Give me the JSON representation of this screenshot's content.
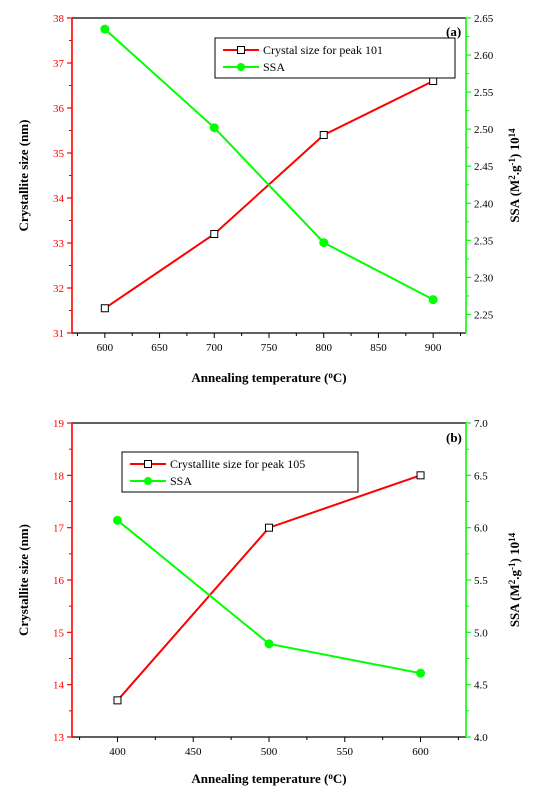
{
  "colors": {
    "left_axis": "#ff0000",
    "right_axis": "#00ff00",
    "series_crystal": "#ff0000",
    "series_ssa": "#00ff00",
    "frame": "#000000"
  },
  "chart_data": [
    {
      "type": "line",
      "panel_label": "(a)",
      "xlabel_main": "Annealing temperature (",
      "xlabel_sup": "o",
      "xlabel_end": "C)",
      "ylabel_left": "Crystallite size (nm)",
      "ylabel_right_main": "SSA (M",
      "ylabel_right_sup1": "2",
      "ylabel_right_mid": ".g",
      "ylabel_right_sup2": "-1",
      "ylabel_right_end": ") 10",
      "ylabel_right_sup3": "14",
      "xlim": [
        570,
        930
      ],
      "ylim_left": [
        31,
        38
      ],
      "ylim_right": [
        2.225,
        2.65
      ],
      "xticks": [
        600,
        650,
        700,
        750,
        800,
        850,
        900
      ],
      "yticks_left": [
        31,
        32,
        33,
        34,
        35,
        36,
        37,
        38
      ],
      "yticks_right": [
        2.25,
        2.3,
        2.35,
        2.4,
        2.45,
        2.5,
        2.55,
        2.6,
        2.65
      ],
      "legend_position": "top-center",
      "series": [
        {
          "name": "Crystal size for peak 101",
          "axis": "left",
          "marker": "open-square",
          "x": [
            600,
            700,
            800,
            900
          ],
          "values": [
            31.55,
            33.2,
            35.4,
            36.6
          ]
        },
        {
          "name": "SSA",
          "axis": "right",
          "marker": "filled-circle",
          "x": [
            600,
            700,
            800,
            900
          ],
          "values": [
            2.635,
            2.502,
            2.347,
            2.27
          ]
        }
      ]
    },
    {
      "type": "line",
      "panel_label": "(b)",
      "xlabel_main": "Annealing temperature (",
      "xlabel_sup": "o",
      "xlabel_end": "C)",
      "ylabel_left": "Crystallite size (nm)",
      "ylabel_right_main": "SSA (M",
      "ylabel_right_sup1": "2",
      "ylabel_right_mid": ".g",
      "ylabel_right_sup2": "-1",
      "ylabel_right_end": ") 10",
      "ylabel_right_sup3": "14",
      "xlim": [
        370,
        630
      ],
      "ylim_left": [
        13,
        19
      ],
      "ylim_right": [
        4.0,
        7.0
      ],
      "xticks": [
        400,
        450,
        500,
        550,
        600
      ],
      "yticks_left": [
        13,
        14,
        15,
        16,
        17,
        18,
        19
      ],
      "yticks_right": [
        4.0,
        4.5,
        5.0,
        5.5,
        6.0,
        6.5,
        7.0
      ],
      "legend_position": "top-left",
      "series": [
        {
          "name": "Crystallite size for peak 105",
          "axis": "left",
          "marker": "open-square",
          "x": [
            400,
            500,
            600
          ],
          "values": [
            13.7,
            17.0,
            18.0
          ]
        },
        {
          "name": "SSA",
          "axis": "right",
          "marker": "filled-circle",
          "x": [
            400,
            500,
            600
          ],
          "values": [
            6.07,
            4.89,
            4.61
          ]
        }
      ]
    }
  ]
}
